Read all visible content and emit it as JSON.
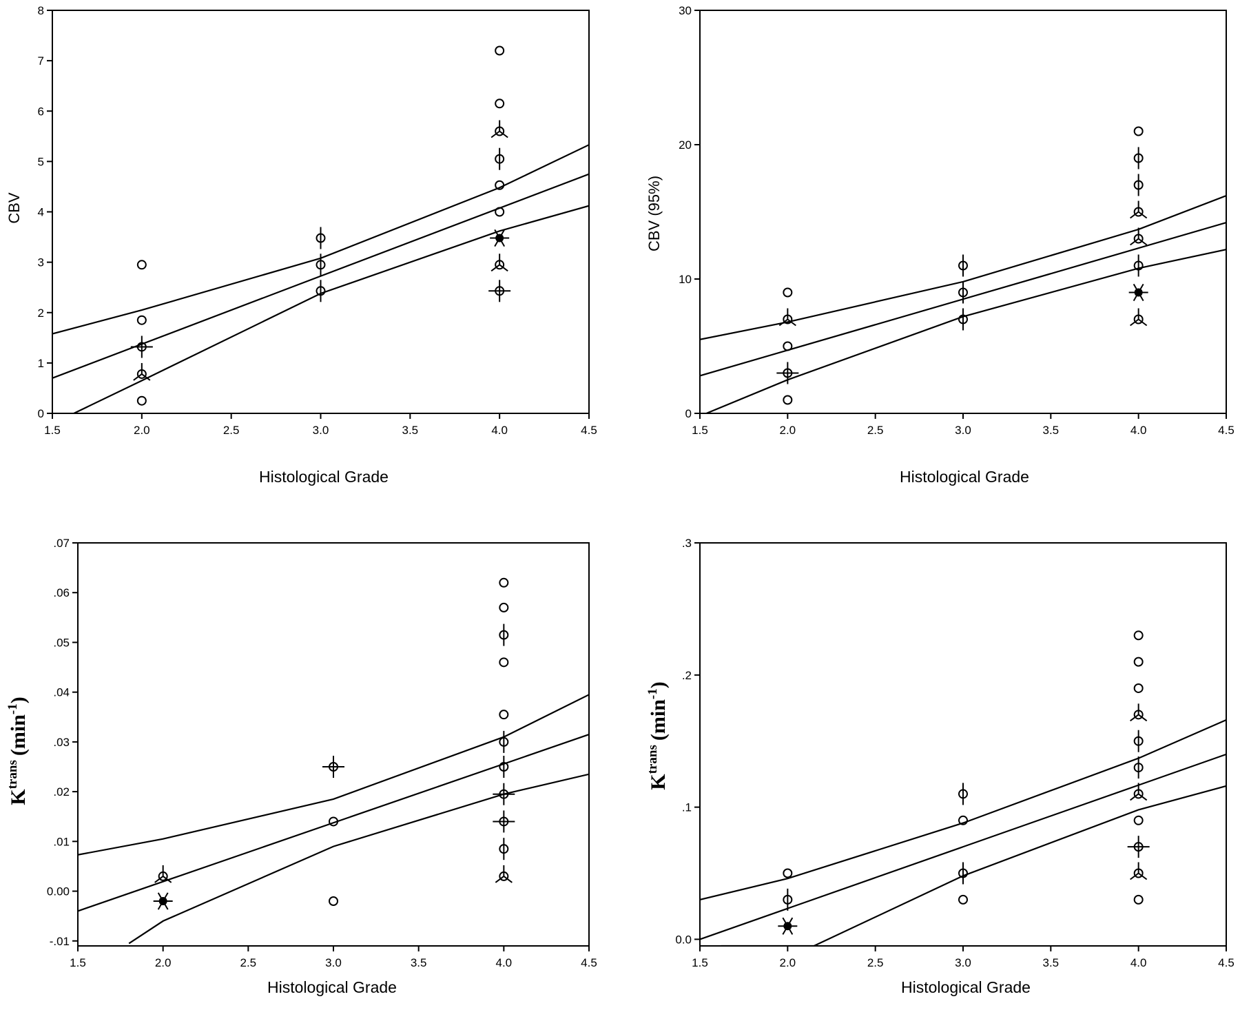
{
  "chart_data": [
    {
      "type": "scatter",
      "xlabel": "Histological Grade",
      "ylabel": "CBV",
      "xlim": [
        1.5,
        4.5
      ],
      "ylim": [
        0,
        8
      ],
      "xticks": [
        "1.5",
        "2.0",
        "2.5",
        "3.0",
        "3.5",
        "4.0",
        "4.5"
      ],
      "yticks": [
        "0",
        "1",
        "2",
        "3",
        "4",
        "5",
        "6",
        "7",
        "8"
      ],
      "points": [
        {
          "x": 2,
          "y": 2.95,
          "marker": "o"
        },
        {
          "x": 2,
          "y": 1.85,
          "marker": "o"
        },
        {
          "x": 2,
          "y": 1.32,
          "marker": "o+"
        },
        {
          "x": 2,
          "y": 0.78,
          "marker": "oY"
        },
        {
          "x": 2,
          "y": 0.25,
          "marker": "o"
        },
        {
          "x": 3,
          "y": 3.48,
          "marker": "o|"
        },
        {
          "x": 3,
          "y": 2.95,
          "marker": "o|"
        },
        {
          "x": 3,
          "y": 2.43,
          "marker": "o|"
        },
        {
          "x": 4,
          "y": 7.2,
          "marker": "o"
        },
        {
          "x": 4,
          "y": 6.15,
          "marker": "o"
        },
        {
          "x": 4,
          "y": 5.6,
          "marker": "oY"
        },
        {
          "x": 4,
          "y": 5.05,
          "marker": "o|"
        },
        {
          "x": 4,
          "y": 4.53,
          "marker": "o"
        },
        {
          "x": 4,
          "y": 4.0,
          "marker": "o"
        },
        {
          "x": 4,
          "y": 3.48,
          "marker": "star"
        },
        {
          "x": 4,
          "y": 2.95,
          "marker": "oY"
        },
        {
          "x": 4,
          "y": 2.43,
          "marker": "o+"
        }
      ],
      "fit": {
        "x": [
          1.5,
          4.5
        ],
        "y": [
          0.7,
          4.75
        ]
      },
      "ci_upper": {
        "x": [
          1.5,
          2.0,
          3.0,
          4.0,
          4.5
        ],
        "y": [
          1.58,
          2.05,
          3.08,
          4.48,
          5.33
        ]
      },
      "ci_lower": {
        "x": [
          1.62,
          2.0,
          3.0,
          4.0,
          4.5
        ],
        "y": [
          0.0,
          0.65,
          2.38,
          3.62,
          4.12
        ]
      }
    },
    {
      "type": "scatter",
      "xlabel": "Histological Grade",
      "ylabel": "CBV (95%)",
      "xlim": [
        1.5,
        4.5
      ],
      "ylim": [
        0,
        30
      ],
      "xticks": [
        "1.5",
        "2.0",
        "2.5",
        "3.0",
        "3.5",
        "4.0",
        "4.5"
      ],
      "yticks": [
        "0",
        "10",
        "20",
        "30"
      ],
      "points": [
        {
          "x": 2,
          "y": 9,
          "marker": "o"
        },
        {
          "x": 2,
          "y": 7,
          "marker": "oY"
        },
        {
          "x": 2,
          "y": 5,
          "marker": "o"
        },
        {
          "x": 2,
          "y": 3,
          "marker": "o+"
        },
        {
          "x": 2,
          "y": 1,
          "marker": "o"
        },
        {
          "x": 3,
          "y": 11,
          "marker": "o|"
        },
        {
          "x": 3,
          "y": 9,
          "marker": "o|"
        },
        {
          "x": 3,
          "y": 7,
          "marker": "o|"
        },
        {
          "x": 4,
          "y": 21,
          "marker": "o"
        },
        {
          "x": 4,
          "y": 19,
          "marker": "o|"
        },
        {
          "x": 4,
          "y": 17,
          "marker": "o|"
        },
        {
          "x": 4,
          "y": 15,
          "marker": "oY"
        },
        {
          "x": 4,
          "y": 13,
          "marker": "oY"
        },
        {
          "x": 4,
          "y": 11,
          "marker": "o|"
        },
        {
          "x": 4,
          "y": 9,
          "marker": "star"
        },
        {
          "x": 4,
          "y": 7,
          "marker": "oY"
        }
      ],
      "fit": {
        "x": [
          1.5,
          4.5
        ],
        "y": [
          2.8,
          14.2
        ]
      },
      "ci_upper": {
        "x": [
          1.5,
          2.0,
          3.0,
          4.0,
          4.5
        ],
        "y": [
          5.5,
          6.8,
          9.8,
          13.7,
          16.2
        ]
      },
      "ci_lower": {
        "x": [
          1.5,
          2.0,
          3.0,
          4.0,
          4.5
        ],
        "y": [
          -0.2,
          2.5,
          7.2,
          10.8,
          12.2
        ]
      }
    },
    {
      "type": "scatter",
      "xlabel": "Histological Grade",
      "ylabel": "K",
      "ylabel_sup": "trans",
      "ylabel_unit": "(min",
      "ylabel_unit_sup": "-1",
      "ylabel_close": ")",
      "xlim": [
        1.5,
        4.5
      ],
      "ylim": [
        -0.011,
        0.07
      ],
      "xticks": [
        "1.5",
        "2.0",
        "2.5",
        "3.0",
        "3.5",
        "4.0",
        "4.5"
      ],
      "yticks": [
        "-.01",
        "0.00",
        ".01",
        ".02",
        ".03",
        ".04",
        ".05",
        ".06",
        ".07"
      ],
      "points": [
        {
          "x": 2,
          "y": 0.003,
          "marker": "oY"
        },
        {
          "x": 2,
          "y": -0.002,
          "marker": "star"
        },
        {
          "x": 3,
          "y": 0.025,
          "marker": "o+"
        },
        {
          "x": 3,
          "y": 0.014,
          "marker": "o"
        },
        {
          "x": 3,
          "y": -0.002,
          "marker": "o"
        },
        {
          "x": 4,
          "y": 0.062,
          "marker": "o"
        },
        {
          "x": 4,
          "y": 0.057,
          "marker": "o"
        },
        {
          "x": 4,
          "y": 0.0515,
          "marker": "o|"
        },
        {
          "x": 4,
          "y": 0.046,
          "marker": "o"
        },
        {
          "x": 4,
          "y": 0.0355,
          "marker": "o"
        },
        {
          "x": 4,
          "y": 0.03,
          "marker": "o|"
        },
        {
          "x": 4,
          "y": 0.025,
          "marker": "o|"
        },
        {
          "x": 4,
          "y": 0.0195,
          "marker": "o+"
        },
        {
          "x": 4,
          "y": 0.014,
          "marker": "o+"
        },
        {
          "x": 4,
          "y": 0.0085,
          "marker": "o|"
        },
        {
          "x": 4,
          "y": 0.003,
          "marker": "oY"
        }
      ],
      "fit": {
        "x": [
          1.5,
          4.5
        ],
        "y": [
          -0.004,
          0.0315
        ]
      },
      "ci_upper": {
        "x": [
          1.5,
          2.0,
          3.0,
          4.0,
          4.5
        ],
        "y": [
          0.0073,
          0.0105,
          0.0185,
          0.031,
          0.0395
        ]
      },
      "ci_lower": {
        "x": [
          1.8,
          2.0,
          3.0,
          4.0,
          4.5
        ],
        "y": [
          -0.0105,
          -0.006,
          0.009,
          0.0195,
          0.0235
        ]
      }
    },
    {
      "type": "scatter",
      "xlabel": "Histological Grade",
      "ylabel": "K",
      "ylabel_sup": "trans",
      "ylabel_unit": "(min",
      "ylabel_unit_sup": "-1",
      "ylabel_close": ")",
      "xlim": [
        1.5,
        4.5
      ],
      "ylim": [
        -0.005,
        0.3
      ],
      "xticks": [
        "1.5",
        "2.0",
        "2.5",
        "3.0",
        "3.5",
        "4.0",
        "4.5"
      ],
      "yticks": [
        "0.0",
        ".1",
        ".2",
        ".3"
      ],
      "points": [
        {
          "x": 2,
          "y": 0.05,
          "marker": "o"
        },
        {
          "x": 2,
          "y": 0.03,
          "marker": "o|"
        },
        {
          "x": 2,
          "y": 0.01,
          "marker": "star"
        },
        {
          "x": 3,
          "y": 0.11,
          "marker": "o|"
        },
        {
          "x": 3,
          "y": 0.09,
          "marker": "o"
        },
        {
          "x": 3,
          "y": 0.05,
          "marker": "o|"
        },
        {
          "x": 3,
          "y": 0.03,
          "marker": "o"
        },
        {
          "x": 4,
          "y": 0.23,
          "marker": "o"
        },
        {
          "x": 4,
          "y": 0.21,
          "marker": "o"
        },
        {
          "x": 4,
          "y": 0.19,
          "marker": "o"
        },
        {
          "x": 4,
          "y": 0.17,
          "marker": "oY"
        },
        {
          "x": 4,
          "y": 0.15,
          "marker": "o|"
        },
        {
          "x": 4,
          "y": 0.13,
          "marker": "o|"
        },
        {
          "x": 4,
          "y": 0.11,
          "marker": "oY"
        },
        {
          "x": 4,
          "y": 0.09,
          "marker": "o"
        },
        {
          "x": 4,
          "y": 0.07,
          "marker": "o+"
        },
        {
          "x": 4,
          "y": 0.05,
          "marker": "oY"
        },
        {
          "x": 4,
          "y": 0.03,
          "marker": "o"
        }
      ],
      "fit": {
        "x": [
          1.5,
          4.5
        ],
        "y": [
          0.0,
          0.14
        ]
      },
      "ci_upper": {
        "x": [
          1.5,
          2.0,
          3.0,
          4.0,
          4.5
        ],
        "y": [
          0.03,
          0.046,
          0.088,
          0.137,
          0.166
        ]
      },
      "ci_lower": {
        "x": [
          1.62,
          2.0,
          2.15,
          3.0,
          4.0,
          4.5
        ],
        "y": [
          -0.005,
          -0.005,
          -0.005,
          0.048,
          0.098,
          0.116
        ]
      }
    }
  ]
}
